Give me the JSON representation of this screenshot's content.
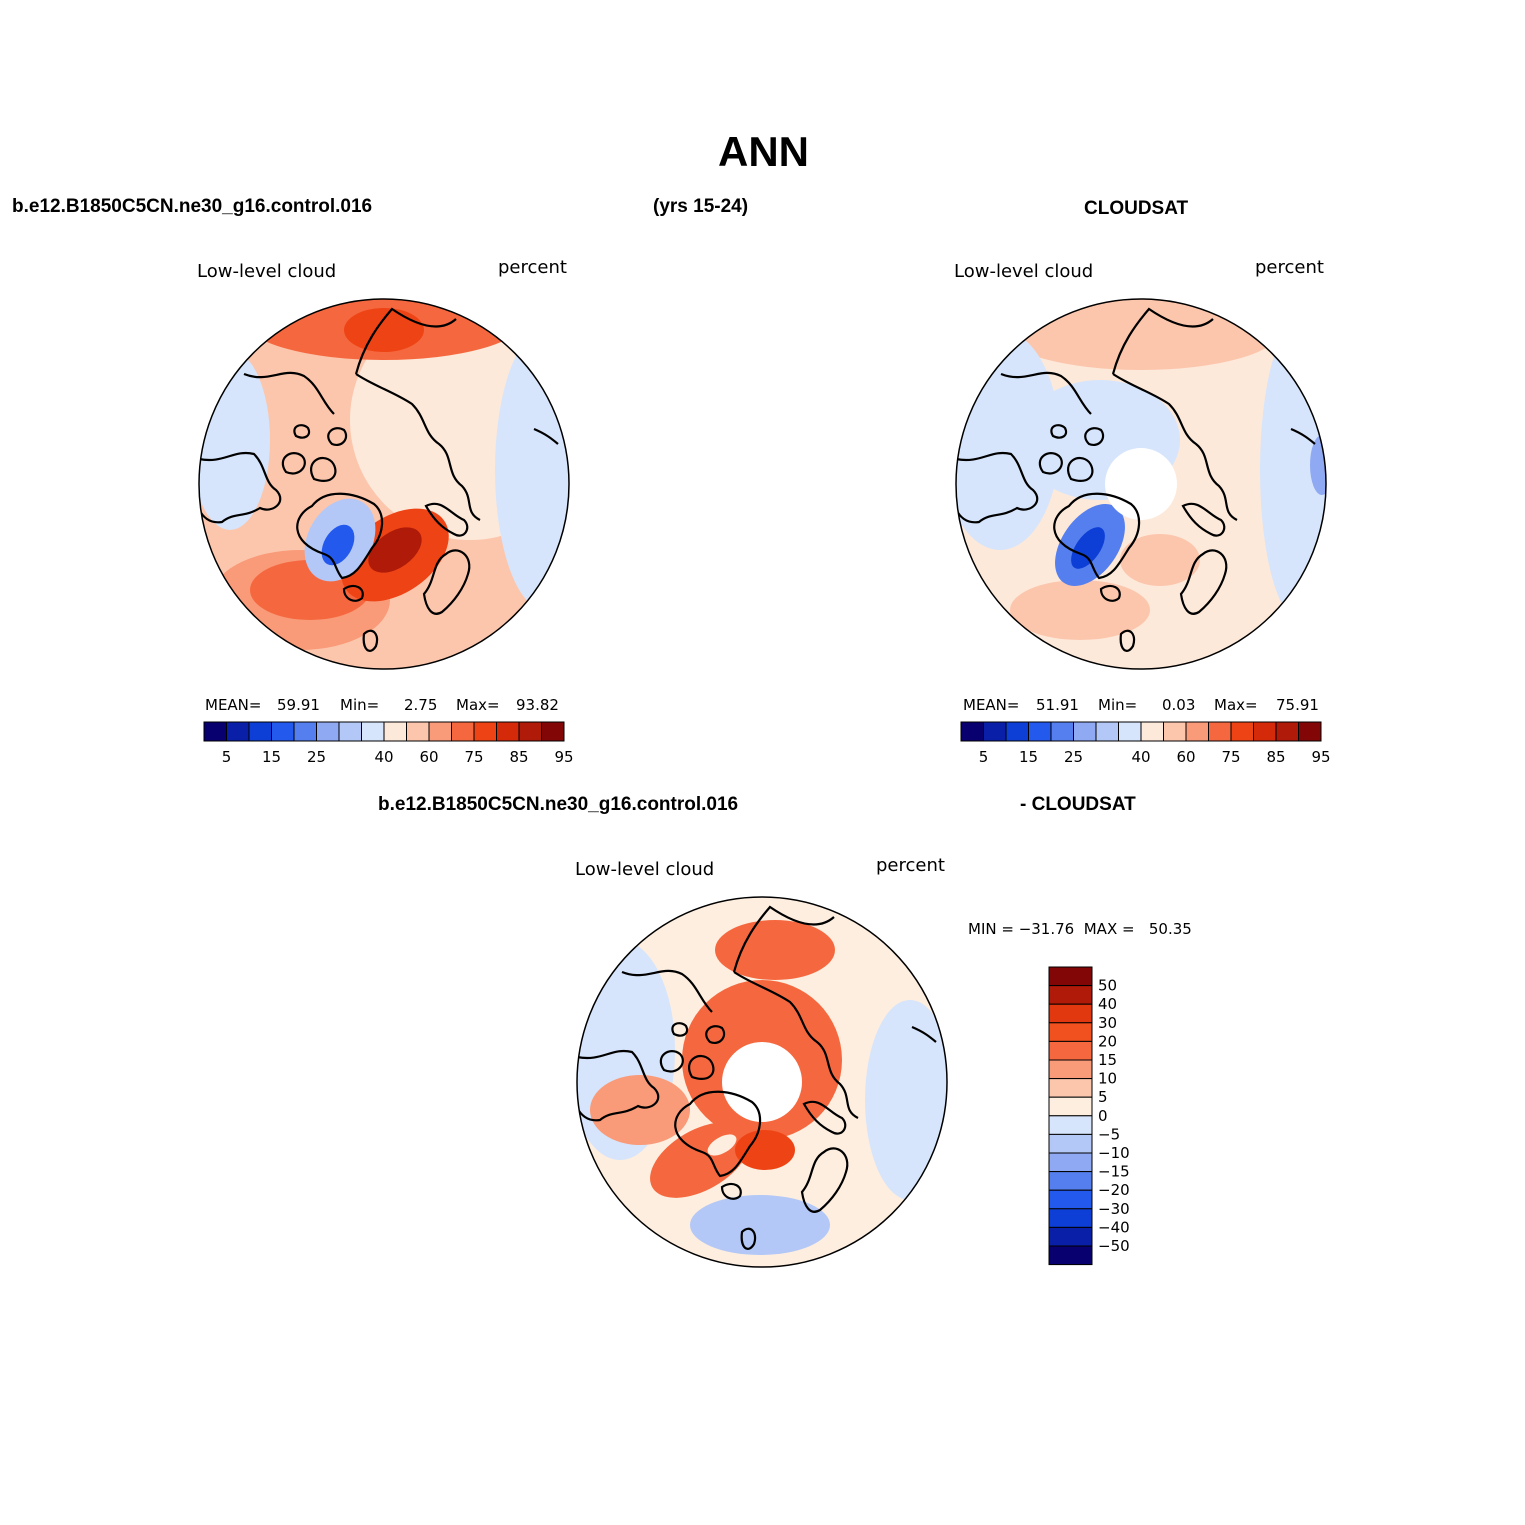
{
  "figure": {
    "title": "ANN",
    "case_name": "b.e12.B1850C5CN.ne30_g16.control.016",
    "years": "(yrs 15-24)",
    "obs_name": "CLOUDSAT",
    "diff_case_name": "b.e12.B1850C5CN.ne30_g16.control.016",
    "diff_obs_name": "- CLOUDSAT"
  },
  "panels": {
    "model": {
      "variable": "Low-level cloud",
      "units": "percent",
      "stats": {
        "mean_label": "MEAN=",
        "mean": "59.91",
        "min_label": "Min=",
        "min": "2.75",
        "max_label": "Max=",
        "max": "93.82"
      }
    },
    "obs": {
      "variable": "Low-level cloud",
      "units": "percent",
      "stats": {
        "mean_label": "MEAN=",
        "mean": "51.91",
        "min_label": "Min=",
        "min": "0.03",
        "max_label": "Max=",
        "max": "75.91"
      }
    },
    "diff": {
      "variable": "Low-level cloud",
      "units": "percent",
      "minmax": "MIN = −31.76  MAX =   50.35"
    }
  },
  "colorbars": {
    "abs": {
      "labels": [
        "5",
        "15",
        "25",
        "40",
        "60",
        "75",
        "85",
        "95"
      ],
      "colors": [
        "#08006e",
        "#0a1fa8",
        "#0d3fd6",
        "#2459ee",
        "#557fee",
        "#8fa9f2",
        "#b3c8f6",
        "#d6e5fb",
        "#fde9da",
        "#fcc6ad",
        "#f99a78",
        "#f5683f",
        "#ee4415",
        "#d42a0a",
        "#b01a08",
        "#830606"
      ]
    },
    "diff": {
      "labels": [
        "50",
        "40",
        "30",
        "20",
        "15",
        "10",
        "5",
        "0",
        "−5",
        "−10",
        "−15",
        "−20",
        "−30",
        "−40",
        "−50"
      ],
      "colors": [
        "#830606",
        "#b01a08",
        "#e23810",
        "#f1501f",
        "#f5683f",
        "#f99a78",
        "#fcc6ad",
        "#fdeedf",
        "#d6e5fb",
        "#b3c8f6",
        "#8fa9f2",
        "#557fee",
        "#2459ee",
        "#0d3fd6",
        "#0a1fa8",
        "#08006e"
      ]
    }
  }
}
